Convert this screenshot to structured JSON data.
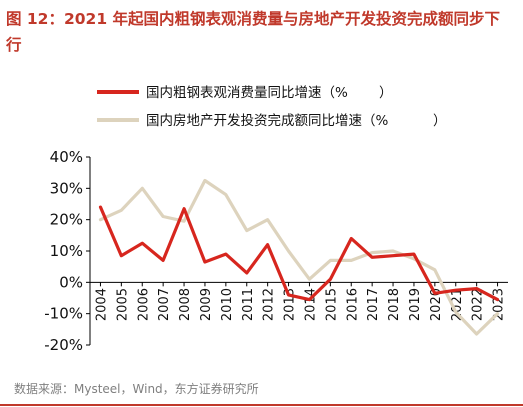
{
  "figure": {
    "title": "图 12：2021 年起国内粗钢表观消费量与房地产开发投资完成额同步下行",
    "source": "数据来源：Mysteel，Wind，东方证券研究所"
  },
  "colors": {
    "steel": "#d7261e",
    "realestate": "#ddd3bd",
    "title": "#c0392b",
    "axis": "#000000"
  },
  "chart_data": {
    "type": "line",
    "x": [
      "2004",
      "2005",
      "2006",
      "2007",
      "2008",
      "2009",
      "2010",
      "2011",
      "2012",
      "2013",
      "2014",
      "2015",
      "2016",
      "2017",
      "2018",
      "2019",
      "2020",
      "2021",
      "2022",
      "2023"
    ],
    "series": [
      {
        "name": "国内粗钢表观消费量同比增速（%",
        "values": [
          24,
          8.5,
          12.5,
          7,
          23.5,
          6.5,
          9,
          3,
          12,
          -4,
          -5.5,
          1,
          14,
          8,
          8.5,
          9,
          -3.5,
          -2.5,
          -2,
          -5.5
        ]
      },
      {
        "name": "国内房地产开发投资完成额同比增速（%",
        "values": [
          20,
          23,
          30,
          21,
          19.5,
          32.5,
          28,
          16.5,
          20,
          10,
          1,
          7,
          7,
          9.5,
          10,
          7.5,
          4,
          -9.5,
          -16.5,
          -10
        ]
      }
    ],
    "yticks": [
      "40%",
      "30%",
      "20%",
      "10%",
      "0%",
      "-10%",
      "-20%"
    ],
    "ylim": [
      -20,
      40
    ],
    "grid": false,
    "legend_position": "top-right"
  }
}
